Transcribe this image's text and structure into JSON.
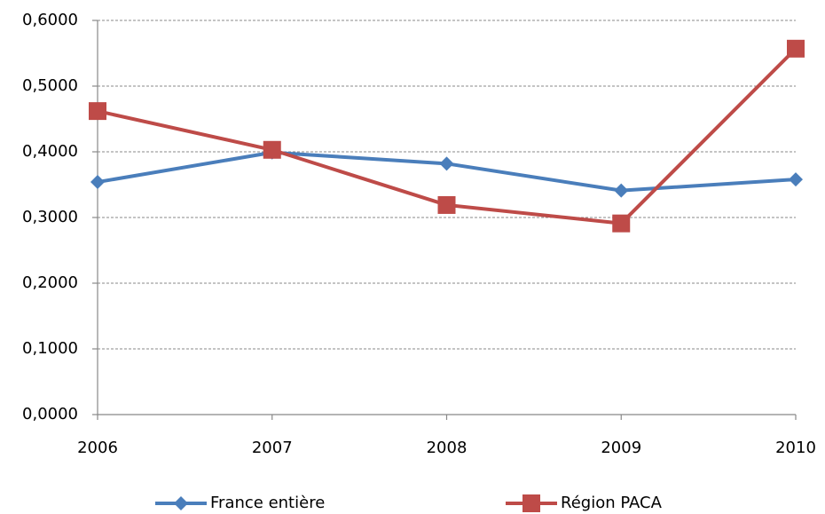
{
  "chart_data": {
    "type": "line",
    "x": [
      2006,
      2007,
      2008,
      2009,
      2010
    ],
    "xlim": [
      2006,
      2010
    ],
    "xticks": [
      2006,
      2007,
      2008,
      2009,
      2010
    ],
    "ylim": [
      0,
      0.6
    ],
    "yticks": [
      {
        "value": 0,
        "label": "0,0000"
      },
      {
        "value": 0.1,
        "label": "0,1000"
      },
      {
        "value": 0.2,
        "label": "0,2000"
      },
      {
        "value": 0.3,
        "label": "0,3000"
      },
      {
        "value": 0.4,
        "label": "0,4000"
      },
      {
        "value": 0.5,
        "label": "0,5000"
      },
      {
        "value": 0.6,
        "label": "0,6000"
      }
    ],
    "grid": true,
    "legend": "bottom",
    "series": [
      {
        "name": "France entière",
        "color": "#4a7ebb",
        "marker": "diamond",
        "values": [
          0.354,
          0.399,
          0.382,
          0.341,
          0.358
        ]
      },
      {
        "name": "Région PACA",
        "color": "#be4b48",
        "marker": "square",
        "values": [
          0.462,
          0.403,
          0.319,
          0.291,
          0.557
        ]
      }
    ]
  }
}
